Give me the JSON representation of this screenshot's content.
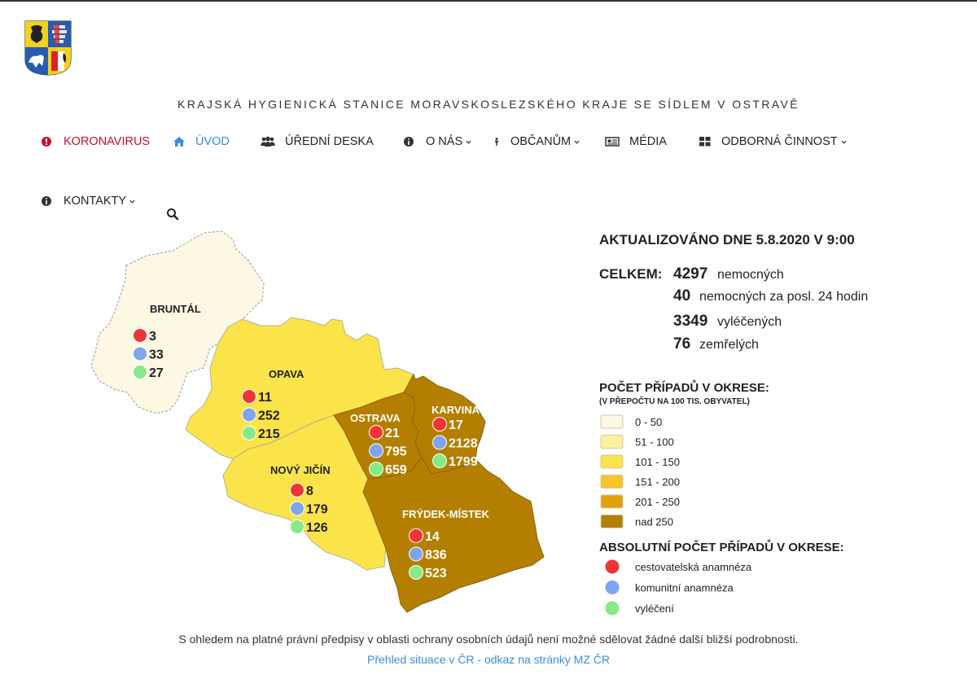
{
  "header": {
    "site_title": "KRAJSKÁ HYGIENICKÁ STANICE MORAVSKOSLEZSKÉHO KRAJE SE SÍDLEM V OSTRAVĚ"
  },
  "nav": {
    "items": [
      {
        "label": "KORONAVIRUS",
        "icon": "exclamation-circle-icon"
      },
      {
        "label": "ÚVOD",
        "icon": "home-icon"
      },
      {
        "label": "ÚŘEDNÍ DESKA",
        "icon": "users-icon"
      },
      {
        "label": "O NÁS",
        "icon": "info-circle-icon"
      },
      {
        "label": "OBČANŮM",
        "icon": "person-icon"
      },
      {
        "label": "MÉDIA",
        "icon": "newspaper-icon"
      },
      {
        "label": "ODBORNÁ ČINNOST",
        "icon": "grid-icon"
      },
      {
        "label": "KONTAKTY",
        "icon": "info-circle-icon"
      }
    ]
  },
  "map": {
    "updated": "AKTUALIZOVÁNO DNE 5.8.2020 V 9:00",
    "totals_label": "CELKEM:",
    "totals": [
      {
        "value": "4297",
        "label": "nemocných"
      },
      {
        "value": "40",
        "label": "nemocných za posl. 24 hodin"
      },
      {
        "value": "3349",
        "label": "vyléčených"
      },
      {
        "value": "76",
        "label": "zemřelých"
      }
    ],
    "legend_title": "POČET PŘÍPADŮ V OKRESE:",
    "legend_subtitle": "(V PŘEPOČTU NA 100 TIS. OBYVATEL)",
    "legend_ranges": [
      {
        "label": "0 - 50",
        "color": "#fcf8e4"
      },
      {
        "label": "51 - 100",
        "color": "#fdf1a0"
      },
      {
        "label": "101 - 150",
        "color": "#fbe34a"
      },
      {
        "label": "151 - 200",
        "color": "#f8c52a"
      },
      {
        "label": "201 - 250",
        "color": "#e0a20b"
      },
      {
        "label": "nad 250",
        "color": "#b47f00"
      }
    ],
    "abs_title": "ABSOLUTNÍ POČET PŘÍPADŮ V OKRESE:",
    "abs_legend": [
      {
        "label": "cestovatelská anamnéza",
        "color": "#ee3535"
      },
      {
        "label": "komunitní anamnéza",
        "color": "#7ea5ee"
      },
      {
        "label": "vyléčení",
        "color": "#86ea86"
      }
    ],
    "districts": [
      {
        "name": "BRUNTÁL",
        "travel": "3",
        "community": "33",
        "recovered": "27"
      },
      {
        "name": "OPAVA",
        "travel": "11",
        "community": "252",
        "recovered": "215"
      },
      {
        "name": "OSTRAVA",
        "travel": "21",
        "community": "795",
        "recovered": "659"
      },
      {
        "name": "KARVINÁ",
        "travel": "17",
        "community": "2128",
        "recovered": "1799"
      },
      {
        "name": "NOVÝ JIČÍN",
        "travel": "8",
        "community": "179",
        "recovered": "126"
      },
      {
        "name": "FRÝDEK-MÍSTEK",
        "travel": "14",
        "community": "836",
        "recovered": "523"
      }
    ]
  },
  "footer": {
    "note": "S ohledem na platné právní předpisy v oblasti ochrany osobních údajů není možné sdělovat žádné další bližší podrobnosti.",
    "link": "Přehled situace v ČR - odkaz na stránky MZ ČR"
  }
}
